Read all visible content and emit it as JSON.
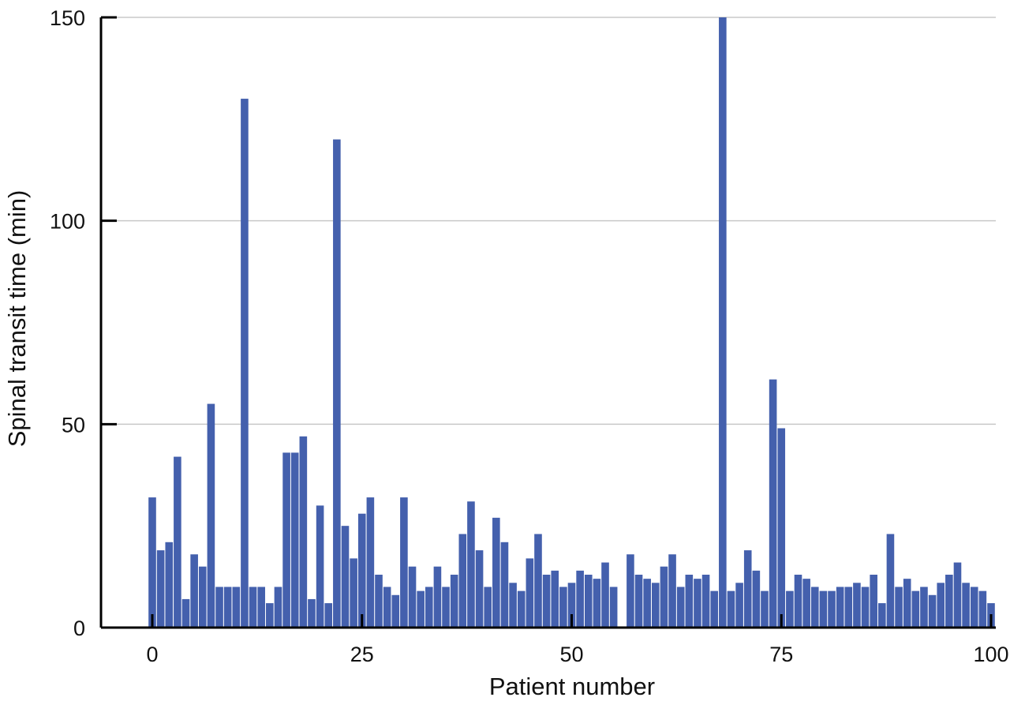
{
  "chart_data": {
    "type": "bar",
    "title": "",
    "xlabel": "Patient number",
    "ylabel": "Spinal transit time (min)",
    "xlim": [
      0,
      100
    ],
    "ylim": [
      0,
      150
    ],
    "x_ticks": [
      0,
      25,
      50,
      75,
      100
    ],
    "y_ticks": [
      0,
      50,
      100,
      150
    ],
    "grid": "horizontal",
    "bar_color": "#4460ad",
    "grid_color": "#c8c8c8",
    "axis_color": "#000000",
    "x": [
      0,
      1,
      2,
      3,
      4,
      5,
      6,
      7,
      8,
      9,
      10,
      11,
      12,
      13,
      14,
      15,
      16,
      17,
      18,
      19,
      20,
      21,
      22,
      23,
      24,
      25,
      26,
      27,
      28,
      29,
      30,
      31,
      32,
      33,
      34,
      35,
      36,
      37,
      38,
      39,
      40,
      41,
      42,
      43,
      44,
      45,
      46,
      47,
      48,
      49,
      50,
      51,
      52,
      53,
      54,
      55,
      56,
      57,
      58,
      59,
      60,
      61,
      62,
      63,
      64,
      65,
      66,
      67,
      68,
      69,
      70,
      71,
      72,
      73,
      74,
      75,
      76,
      77,
      78,
      79,
      80,
      81,
      82,
      83,
      84,
      85,
      86,
      87,
      88,
      89,
      90,
      91,
      92,
      93,
      94,
      95,
      96,
      97,
      98,
      99,
      100
    ],
    "values": [
      32,
      19,
      21,
      42,
      7,
      18,
      15,
      55,
      10,
      10,
      10,
      130,
      10,
      10,
      6,
      10,
      43,
      43,
      47,
      7,
      30,
      6,
      120,
      25,
      17,
      28,
      32,
      13,
      10,
      8,
      32,
      15,
      9,
      10,
      15,
      10,
      13,
      23,
      31,
      19,
      10,
      27,
      21,
      11,
      9,
      17,
      23,
      13,
      14,
      10,
      11,
      14,
      13,
      12,
      16,
      10,
      0,
      18,
      13,
      12,
      11,
      15,
      18,
      10,
      13,
      12,
      13,
      9,
      150,
      9,
      11,
      19,
      14,
      9,
      61,
      49,
      9,
      13,
      12,
      10,
      9,
      9,
      10,
      10,
      11,
      10,
      13,
      6,
      23,
      10,
      12,
      9,
      10,
      8,
      11,
      13,
      16,
      11,
      10,
      9,
      6
    ]
  }
}
